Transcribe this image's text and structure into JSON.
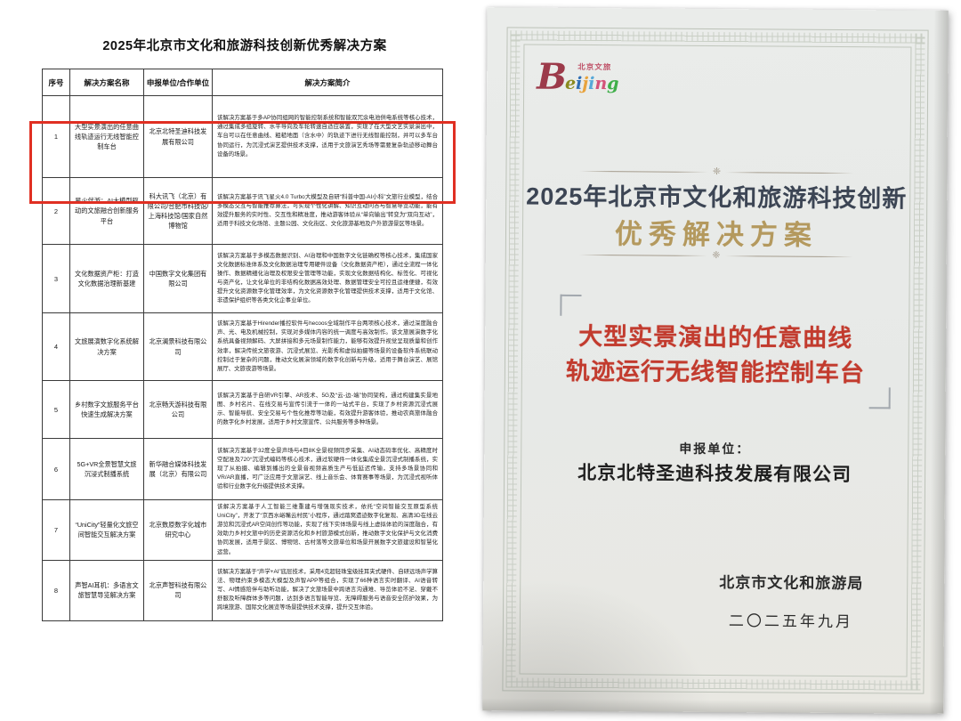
{
  "left_doc": {
    "title": "2025年北京市文化和旅游科技创新优秀解决方案",
    "table": {
      "headers": [
        "序号",
        "解决方案名称",
        "申报单位/合作单位",
        "解决方案简介"
      ],
      "rows": [
        {
          "no": "1",
          "name": "大型实景演出的任意曲线轨迹运行无线智能控制车台",
          "org": "北京北特圣迪科技发展有限公司",
          "intro": "该解决方案基于多AP协同组网的智能控制系统和智能双冗余电池供电系统等核心技术，通过集成多组旋转、水平导向及车轮转速自适应装置，实现了在大型文艺实景演出中，车台可以在任意曲线、粗糙地面（含水中）的轨迹下进行无线智能控制，并可以多车台协同运行，为沉浸式演艺提供技术支撑，适用于文旅演艺秀场等需要复杂轨迹移动舞台设备的场景。"
        },
        {
          "no": "2",
          "name": "星火伴游：AI大模型驱动的文旅融合创新服务平台",
          "org": "科大讯飞（北京）有限公司/合肥市科技馆/上海科技馆/国家自然博物馆",
          "intro": "该解决方案基于讯飞星火4.0 Turbo大模型及自研“科普中国-AI小科”文旅行业模型，结合多模态交互与智能推荐算法，可实现个性化讲解、知识互动问答与智慧导览功能，能有效提升服务的实时性、交互性和精准度，推动游客体验从“单向输出”转变为“双向互动”，适用于科技文化场馆、主题公园、文化街区、文化旅游基地及户外旅游景区等场景。"
        },
        {
          "no": "3",
          "name": "文化数据资产柜：打造文化数据治理新基建",
          "org": "中国数字文化集团有限公司",
          "intro": "该解决方案基于多模态数据识别、AI治理和中国数字文化链确权等核心技术，集成国家文化数据标准体系及文化数据治理专用硬件设备（文化数据资产柜），通过全流程一体化操作、数据精细化治理及权限安全管理等功能，实现文化数据结构化、标签化、可视化与资产化，让文化单位的非结构化数据高效处理、数据管理安全可控且运维便捷，有效提升文化资源数字化管理效率，为文化资源数字化管理提供技术支撑，适用于文化馆、非遗保护组织等各类文化企事业单位。"
        },
        {
          "no": "4",
          "name": "文旅展演数字化系统解决方案",
          "org": "北京澜景科技有限公司",
          "intro": "该解决方案基于Hirender播控软件与hecoos全域制作平台两项核心技术，通过深度融合声、光、电及机械控制，实现对多媒体内容的统一调度与高效制作。该文旅展演数字化系统具备视频解码、大屏拼接和多元场景制作能力，能够有效提升视觉呈现质量和创作效率，解决传统文旅夜游、沉浸式展览、光影秀和虚拟拍摄等场景的设备软件系统联动控制过于复杂的问题，推动文化展演领域的数字化创新与升级，适用于舞台演艺、展馆展厅、文旅夜游等场景。"
        },
        {
          "no": "5",
          "name": "乡村数字文旅服务平台快速生成解决方案",
          "org": "北京畅天游科技有限公司",
          "intro": "该解决方案基于自研VR引擎、AR技术、5G及“云-边-端”协同架构，通过构建集实景地图、乡村名片、在线交易与宣传引流于一体的一站式平台，实现了乡村资源沉浸式展示、智能导航、安全交易与个性化推荐等功能，有效提升游客体验，推动农商旅体融合的数字化乡村发展，适用于乡村文旅宣传、公共服务等多种场景。"
        },
        {
          "no": "6",
          "name": "5G+VR全景智慧文旅沉浸式制播系统",
          "org": "新华融合媒体科技发展（北京）有限公司",
          "intro": "该解决方案基于32度全景声场与4目8K全景视频同步采集、AI动态码率优化、高精度时空配准及720°沉浸式编码等核心技术，通过软硬件一体化集成全景沉浸式制播系统，实现了从拍摄、编辑到播出的全景音视频高质生产与低延迟传输，支持多场景协同和VR/AR直播，可广泛应用于文旅演艺、线上音乐会、体育赛事等场景，为沉浸式视听体验和行业数字化升级提供技术支撑。"
        },
        {
          "no": "7",
          "name": "“UniCity”轻量化文旅空间智能交互解决方案",
          "org": "北京数原数字化城市研究中心",
          "intro": "该解决方案基于人工智能三维重建与增强现实技术，依托“空间智能交互原型系统UniCity”，开发了“京西水峪嘴云村民”小程序，通过踏窝遗迹数字化复现、高清3D在线云游览和沉浸式AR空间创作等功能，实现了线下实体场景与线上虚拟体验的深度融合，有效助力乡村文旅中的历史资源活化和乡村旅游模式创新，推动数字文化保护与文化消费协同发展，适用于景区、博物馆、古村落等文旅单位和场景开展数字文旅建设和智慧化运营。"
        },
        {
          "no": "8",
          "name": "声智AI耳机：多语言文旅智慧导览解决方案",
          "org": "北京声智科技有限公司",
          "intro": "该解决方案基于“声学+AI”底层技术，采用4克超轻珠宝级挂耳夹式硬件、自研远场声学算法、物理约束多模态大模型及声智APP等组合，实现了66种语言实时翻译、AI语音转写、AI情感陪伴与助听功能，解决了文旅场景中跨语言沟通难、导览体验不足、穿戴不舒服及听障群体多等问题，达到多语言智能导览、无障碍服务与语音安全防护效果，为跨境旅游、国际文化展览等场景提供技术支撑，提升交互体验。"
        }
      ]
    }
  },
  "certificate": {
    "logo": {
      "tagline": "北京文旅",
      "letters": [
        {
          "ch": "B",
          "color": "#9c3a4a"
        },
        {
          "ch": "e",
          "color": "#8a8a1f"
        },
        {
          "ch": "i",
          "color": "#2e6db4"
        },
        {
          "ch": "j",
          "color": "#e8a33d"
        },
        {
          "ch": "i",
          "color": "#56a8d8"
        },
        {
          "ch": "n",
          "color": "#d4527a"
        },
        {
          "ch": "g",
          "color": "#3fae49"
        }
      ]
    },
    "divider_ornament": "❈",
    "title_line1": "2025年北京市文化和旅游科技创新",
    "title_line2": "优秀解决方案",
    "solution_name_line1": "大型实景演出的任意曲线",
    "solution_name_line2": "轨迹运行无线智能控制车台",
    "applicant_label": "申报单位：",
    "applicant_name": "北京北特圣迪科技发展有限公司",
    "issuer": "北京市文化和旅游局",
    "issue_date": "二〇二五年九月",
    "colors": {
      "title_dark": "#3c4554",
      "title_gold": "#b4995e",
      "solution_red": "#c23b2e",
      "highlight_red": "#e02f22"
    }
  }
}
